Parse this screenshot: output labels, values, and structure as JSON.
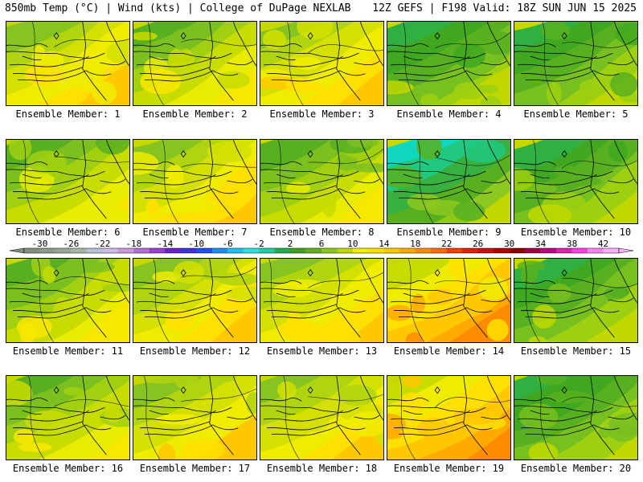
{
  "header": {
    "left": "850mb Temp (°C) | Wind (kts) | College of DuPage NEXLAB",
    "right": "12Z GEFS | F198 Valid: 18Z SUN JUN 15 2025"
  },
  "member_label_prefix": "Ensemble Member:",
  "members": [
    {
      "id": 1,
      "label": "Ensemble Member: 1",
      "tone": "warm"
    },
    {
      "id": 2,
      "label": "Ensemble Member: 2",
      "tone": "mid"
    },
    {
      "id": 3,
      "label": "Ensemble Member: 3",
      "tone": "warm"
    },
    {
      "id": 4,
      "label": "Ensemble Member: 4",
      "tone": "cool"
    },
    {
      "id": 5,
      "label": "Ensemble Member: 5",
      "tone": "cool"
    },
    {
      "id": 6,
      "label": "Ensemble Member: 6",
      "tone": "mid"
    },
    {
      "id": 7,
      "label": "Ensemble Member: 7",
      "tone": "warm"
    },
    {
      "id": 8,
      "label": "Ensemble Member: 8",
      "tone": "mid"
    },
    {
      "id": 9,
      "label": "Ensemble Member: 9",
      "tone": "cold"
    },
    {
      "id": 10,
      "label": "Ensemble Member: 10",
      "tone": "cool"
    },
    {
      "id": 11,
      "label": "Ensemble Member: 11",
      "tone": "mid"
    },
    {
      "id": 12,
      "label": "Ensemble Member: 12",
      "tone": "warm"
    },
    {
      "id": 13,
      "label": "Ensemble Member: 13",
      "tone": "warm"
    },
    {
      "id": 14,
      "label": "Ensemble Member: 14",
      "tone": "hot"
    },
    {
      "id": 15,
      "label": "Ensemble Member: 15",
      "tone": "cool"
    },
    {
      "id": 16,
      "label": "Ensemble Member: 16",
      "tone": "mid"
    },
    {
      "id": 17,
      "label": "Ensemble Member: 17",
      "tone": "warm"
    },
    {
      "id": 18,
      "label": "Ensemble Member: 18",
      "tone": "warm"
    },
    {
      "id": 19,
      "label": "Ensemble Member: 19",
      "tone": "hot"
    },
    {
      "id": 20,
      "label": "Ensemble Member: 20",
      "tone": "cool"
    }
  ],
  "colorbar": {
    "labels": [
      "-30",
      "-26",
      "-22",
      "-18",
      "-14",
      "-10",
      "-6",
      "-2",
      "2",
      "6",
      "10",
      "14",
      "18",
      "22",
      "26",
      "30",
      "34",
      "38",
      "42"
    ],
    "colors": [
      "#7f8f80",
      "#8e9c8e",
      "#9aa89b",
      "#a8b5a8",
      "#b5c0d5",
      "#cfb9e6",
      "#c99ae0",
      "#b56ed6",
      "#9a3fd0",
      "#6a20d0",
      "#4030e0",
      "#2050f0",
      "#1e8ef0",
      "#20c0f0",
      "#30e0e0",
      "#20d0a0",
      "#20b050",
      "#40a020",
      "#60b020",
      "#8cc820",
      "#c0d800",
      "#f0f000",
      "#ffe000",
      "#ffc800",
      "#ffaa00",
      "#ff8c00",
      "#ff6a00",
      "#f04000",
      "#e02000",
      "#c81010",
      "#b00000",
      "#900000",
      "#a00040",
      "#c00080",
      "#e020b0",
      "#ff40e0",
      "#ff80f0",
      "#ffb0ff"
    ]
  }
}
